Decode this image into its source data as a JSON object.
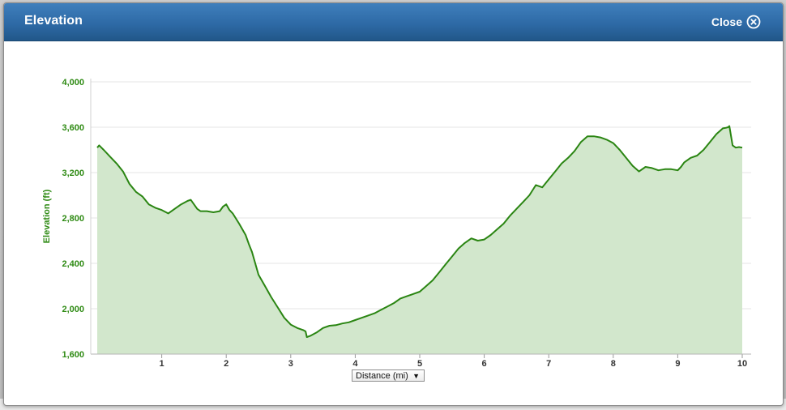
{
  "dialog": {
    "title": "Elevation",
    "close_label": "Close"
  },
  "unit_selector": {
    "selected": "Distance (mi)"
  },
  "colors": {
    "line": "#2a8512",
    "fill": "#d2e7cc",
    "axis_text": "#2e8a13",
    "titlebar": "#2e6aa6"
  },
  "chart_data": {
    "type": "area",
    "title": "",
    "xlabel": "Distance (mi)",
    "ylabel": "Elevation (ft)",
    "xlim": [
      0,
      10
    ],
    "ylim": [
      1600,
      4000
    ],
    "yticks": [
      1600,
      2000,
      2400,
      2800,
      3200,
      3600,
      4000
    ],
    "ytick_labels": [
      "1,600",
      "2,000",
      "2,400",
      "2,800",
      "3,200",
      "3,600",
      "4,000"
    ],
    "xticks": [
      1,
      2,
      3,
      4,
      5,
      6,
      7,
      8,
      9,
      10
    ],
    "xtick_labels": [
      "1",
      "2",
      "3",
      "4",
      "5",
      "6",
      "7",
      "8",
      "9",
      "10"
    ],
    "grid": "horizontal",
    "legend": "none",
    "series": [
      {
        "x": [
          0.0,
          0.03,
          0.1,
          0.2,
          0.3,
          0.4,
          0.5,
          0.6,
          0.7,
          0.8,
          0.9,
          1.0,
          1.1,
          1.2,
          1.3,
          1.4,
          1.45,
          1.5,
          1.55,
          1.6,
          1.7,
          1.8,
          1.9,
          1.95,
          2.0,
          2.05,
          2.1,
          2.2,
          2.3,
          2.35,
          2.4,
          2.5,
          2.6,
          2.7,
          2.8,
          2.9,
          3.0,
          3.1,
          3.2,
          3.23,
          3.25,
          3.3,
          3.4,
          3.5,
          3.6,
          3.7,
          3.8,
          3.9,
          4.0,
          4.1,
          4.2,
          4.3,
          4.4,
          4.5,
          4.6,
          4.7,
          4.8,
          4.9,
          5.0,
          5.1,
          5.2,
          5.3,
          5.4,
          5.5,
          5.6,
          5.7,
          5.8,
          5.9,
          6.0,
          6.1,
          6.2,
          6.3,
          6.4,
          6.5,
          6.6,
          6.7,
          6.8,
          6.9,
          7.0,
          7.1,
          7.2,
          7.3,
          7.4,
          7.5,
          7.6,
          7.7,
          7.8,
          7.9,
          8.0,
          8.1,
          8.2,
          8.3,
          8.4,
          8.5,
          8.6,
          8.7,
          8.8,
          8.9,
          9.0,
          9.05,
          9.1,
          9.2,
          9.3,
          9.4,
          9.5,
          9.6,
          9.7,
          9.75,
          9.78,
          9.8,
          9.85,
          9.9,
          9.95,
          10.0
        ],
        "values": [
          3420,
          3440,
          3400,
          3340,
          3280,
          3210,
          3100,
          3030,
          2990,
          2920,
          2890,
          2870,
          2840,
          2880,
          2920,
          2950,
          2960,
          2920,
          2880,
          2860,
          2860,
          2850,
          2860,
          2900,
          2920,
          2870,
          2840,
          2750,
          2650,
          2570,
          2500,
          2300,
          2200,
          2100,
          2010,
          1920,
          1860,
          1830,
          1810,
          1800,
          1750,
          1760,
          1790,
          1830,
          1850,
          1855,
          1870,
          1880,
          1900,
          1920,
          1940,
          1960,
          1990,
          2020,
          2050,
          2090,
          2110,
          2130,
          2150,
          2200,
          2250,
          2320,
          2390,
          2460,
          2530,
          2580,
          2620,
          2600,
          2610,
          2650,
          2700,
          2750,
          2820,
          2880,
          2940,
          3000,
          3090,
          3070,
          3140,
          3210,
          3280,
          3330,
          3390,
          3470,
          3520,
          3520,
          3510,
          3490,
          3460,
          3400,
          3330,
          3260,
          3210,
          3250,
          3240,
          3220,
          3230,
          3230,
          3220,
          3250,
          3290,
          3330,
          3350,
          3400,
          3470,
          3540,
          3590,
          3595,
          3600,
          3610,
          3440,
          3420,
          3425,
          3420
        ]
      }
    ]
  }
}
